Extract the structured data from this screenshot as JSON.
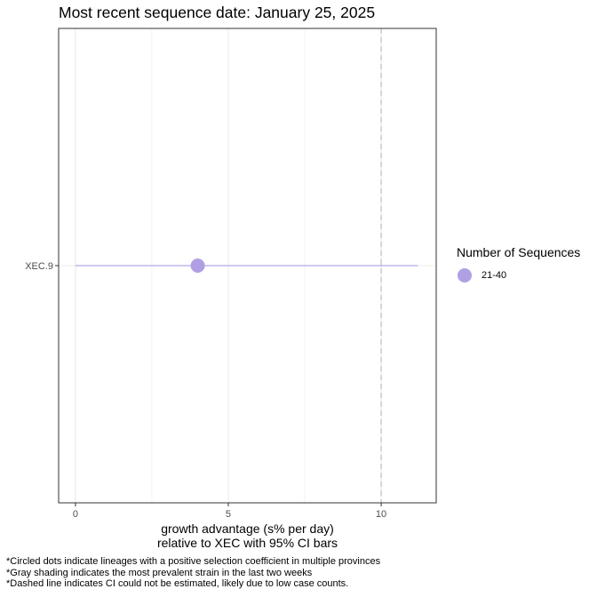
{
  "title": "Most recent sequence date: January 25, 2025",
  "colors": {
    "series": "#b19fe4",
    "ci_line": "#b3a6e6",
    "dashed_line": "#bdbdbd",
    "panel_border": "#333333",
    "grid": "#ebebeb"
  },
  "legend": {
    "title": "Number of Sequences",
    "items": [
      {
        "label": "21-40",
        "color": "#b19fe4"
      }
    ]
  },
  "footnotes": [
    "*Circled dots indicate lineages with a positive selection coefficient in multiple provinces",
    "*Gray shading indicates the most prevalent strain in the last two weeks",
    "*Dashed line indicates CI could not be estimated, likely due to low case counts."
  ],
  "chart_data": {
    "type": "scatter",
    "title": "Most recent sequence date: January 25, 2025",
    "xlabel": [
      "growth advantage (s% per day)",
      "relative to  XEC  with 95% CI bars"
    ],
    "ylabel": "",
    "xlim": [
      -0.55,
      11.8
    ],
    "x_ticks": [
      0,
      5,
      10
    ],
    "x_tick_labels": [
      "0",
      "5",
      "10"
    ],
    "categories": [
      "XEC.9"
    ],
    "points": [
      {
        "lineage": "XEC.9",
        "x": 4.0,
        "ci_low": 0.0,
        "ci_high": 11.2,
        "sequences": "21-40"
      }
    ],
    "reference_lines": [
      {
        "x": 10,
        "style": "dashed"
      }
    ],
    "grid": true,
    "legend_position": "right"
  }
}
